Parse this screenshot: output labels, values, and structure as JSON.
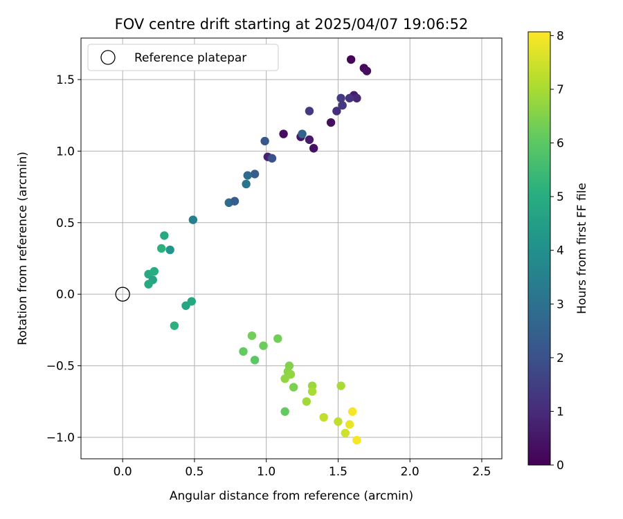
{
  "chart_data": {
    "type": "scatter",
    "title": "FOV centre drift starting at 2025/04/07 19:06:52",
    "xlabel": "Angular distance from reference (arcmin)",
    "ylabel": "Rotation from reference (arcmin)",
    "xlim": [
      -0.29,
      2.64
    ],
    "ylim": [
      -1.15,
      1.79
    ],
    "xticks": [
      0.0,
      0.5,
      1.0,
      1.5,
      2.0,
      2.5
    ],
    "xtick_labels": [
      "0.0",
      "0.5",
      "1.0",
      "1.5",
      "2.0",
      "2.5"
    ],
    "yticks": [
      -1.0,
      -0.5,
      0.0,
      0.5,
      1.0,
      1.5
    ],
    "ytick_labels": [
      "−1.0",
      "−0.5",
      "0.0",
      "0.5",
      "1.0",
      "1.5"
    ],
    "grid": true,
    "legend": {
      "location": "top-left",
      "entries": [
        {
          "label": "Reference platepar",
          "marker": "open-circle"
        }
      ]
    },
    "reference_point": {
      "x": 0.0,
      "y": 0.0
    },
    "colorbar": {
      "label": "Hours from first FF file",
      "colormap": "viridis",
      "range": [
        0,
        8.07
      ],
      "ticks": [
        0,
        1,
        2,
        3,
        4,
        5,
        6,
        7,
        8
      ],
      "tick_labels": [
        "0",
        "1",
        "2",
        "3",
        "4",
        "5",
        "6",
        "7",
        "8"
      ]
    },
    "points": [
      {
        "x": 1.59,
        "y": 1.64,
        "hours": 0.1
      },
      {
        "x": 1.68,
        "y": 1.58,
        "hours": 0.2
      },
      {
        "x": 1.7,
        "y": 1.56,
        "hours": 0.3
      },
      {
        "x": 1.61,
        "y": 1.39,
        "hours": 0.6
      },
      {
        "x": 1.63,
        "y": 1.37,
        "hours": 0.9
      },
      {
        "x": 1.58,
        "y": 1.37,
        "hours": 1.2
      },
      {
        "x": 1.52,
        "y": 1.37,
        "hours": 1.4
      },
      {
        "x": 1.53,
        "y": 1.32,
        "hours": 1.3
      },
      {
        "x": 1.3,
        "y": 1.28,
        "hours": 1.4
      },
      {
        "x": 1.49,
        "y": 1.28,
        "hours": 1.1
      },
      {
        "x": 1.45,
        "y": 1.2,
        "hours": 0.3
      },
      {
        "x": 1.12,
        "y": 1.12,
        "hours": 0.3
      },
      {
        "x": 1.24,
        "y": 1.1,
        "hours": 0.5
      },
      {
        "x": 1.3,
        "y": 1.08,
        "hours": 0.6
      },
      {
        "x": 1.33,
        "y": 1.02,
        "hours": 0.4
      },
      {
        "x": 1.25,
        "y": 1.12,
        "hours": 2.6
      },
      {
        "x": 0.99,
        "y": 1.07,
        "hours": 2.2
      },
      {
        "x": 1.01,
        "y": 0.96,
        "hours": 0.8
      },
      {
        "x": 1.04,
        "y": 0.95,
        "hours": 2.0
      },
      {
        "x": 0.92,
        "y": 0.84,
        "hours": 2.4
      },
      {
        "x": 0.87,
        "y": 0.83,
        "hours": 2.8
      },
      {
        "x": 0.86,
        "y": 0.77,
        "hours": 3.1
      },
      {
        "x": 0.74,
        "y": 0.64,
        "hours": 2.8
      },
      {
        "x": 0.78,
        "y": 0.65,
        "hours": 2.4
      },
      {
        "x": 0.49,
        "y": 0.52,
        "hours": 3.5
      },
      {
        "x": 0.29,
        "y": 0.41,
        "hours": 4.9
      },
      {
        "x": 0.27,
        "y": 0.32,
        "hours": 5.1
      },
      {
        "x": 0.33,
        "y": 0.31,
        "hours": 4.2
      },
      {
        "x": 0.18,
        "y": 0.14,
        "hours": 4.9
      },
      {
        "x": 0.22,
        "y": 0.16,
        "hours": 5.0
      },
      {
        "x": 0.21,
        "y": 0.1,
        "hours": 4.7
      },
      {
        "x": 0.18,
        "y": 0.07,
        "hours": 4.9
      },
      {
        "x": 0.44,
        "y": -0.08,
        "hours": 4.7
      },
      {
        "x": 0.48,
        "y": -0.05,
        "hours": 4.8
      },
      {
        "x": 0.36,
        "y": -0.22,
        "hours": 5.1
      },
      {
        "x": 0.9,
        "y": -0.29,
        "hours": 6.3
      },
      {
        "x": 0.84,
        "y": -0.4,
        "hours": 6.1
      },
      {
        "x": 0.98,
        "y": -0.36,
        "hours": 6.2
      },
      {
        "x": 0.92,
        "y": -0.46,
        "hours": 6.0
      },
      {
        "x": 1.08,
        "y": -0.31,
        "hours": 6.3
      },
      {
        "x": 1.16,
        "y": -0.5,
        "hours": 6.5
      },
      {
        "x": 1.15,
        "y": -0.54,
        "hours": 6.6
      },
      {
        "x": 1.17,
        "y": -0.56,
        "hours": 6.7
      },
      {
        "x": 1.13,
        "y": -0.59,
        "hours": 6.7
      },
      {
        "x": 1.19,
        "y": -0.65,
        "hours": 6.4
      },
      {
        "x": 1.13,
        "y": -0.82,
        "hours": 6.1
      },
      {
        "x": 1.32,
        "y": -0.64,
        "hours": 6.8
      },
      {
        "x": 1.32,
        "y": -0.68,
        "hours": 7.0
      },
      {
        "x": 1.28,
        "y": -0.75,
        "hours": 6.9
      },
      {
        "x": 1.52,
        "y": -0.64,
        "hours": 7.0
      },
      {
        "x": 1.4,
        "y": -0.86,
        "hours": 7.3
      },
      {
        "x": 1.5,
        "y": -0.89,
        "hours": 7.3
      },
      {
        "x": 1.6,
        "y": -0.82,
        "hours": 8.0
      },
      {
        "x": 1.58,
        "y": -0.91,
        "hours": 7.8
      },
      {
        "x": 1.55,
        "y": -0.97,
        "hours": 7.5
      },
      {
        "x": 1.63,
        "y": -1.02,
        "hours": 8.0
      }
    ]
  }
}
